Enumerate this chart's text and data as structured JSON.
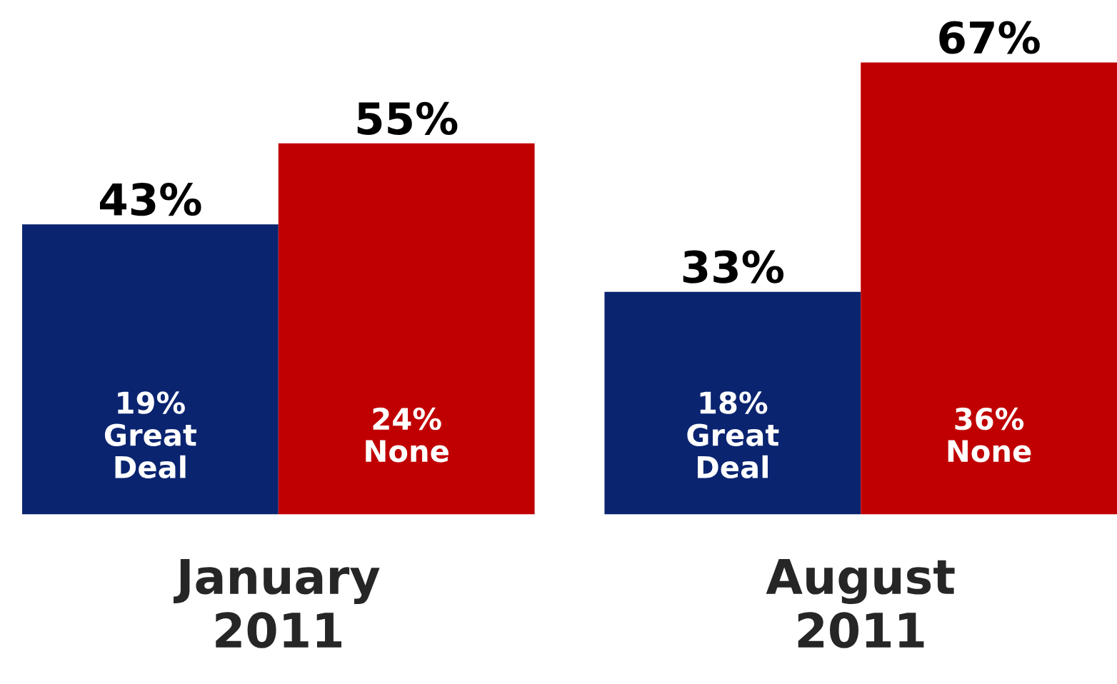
{
  "chart_data": {
    "type": "bar",
    "categories": [
      "January\n2011",
      "August\n2011"
    ],
    "series": [
      {
        "color": "#0a2470",
        "values": [
          43,
          33
        ],
        "value_labels": [
          "43%",
          "33%"
        ]
      },
      {
        "color": "#c00000",
        "values": [
          55,
          67
        ],
        "value_labels": [
          "55%",
          "67%"
        ]
      }
    ],
    "annotations": [
      "19%\nGreat\nDeal",
      "24%\nNone",
      "18%\nGreat\nDeal",
      "36%\nNone"
    ],
    "tick_labels": "x"
  }
}
